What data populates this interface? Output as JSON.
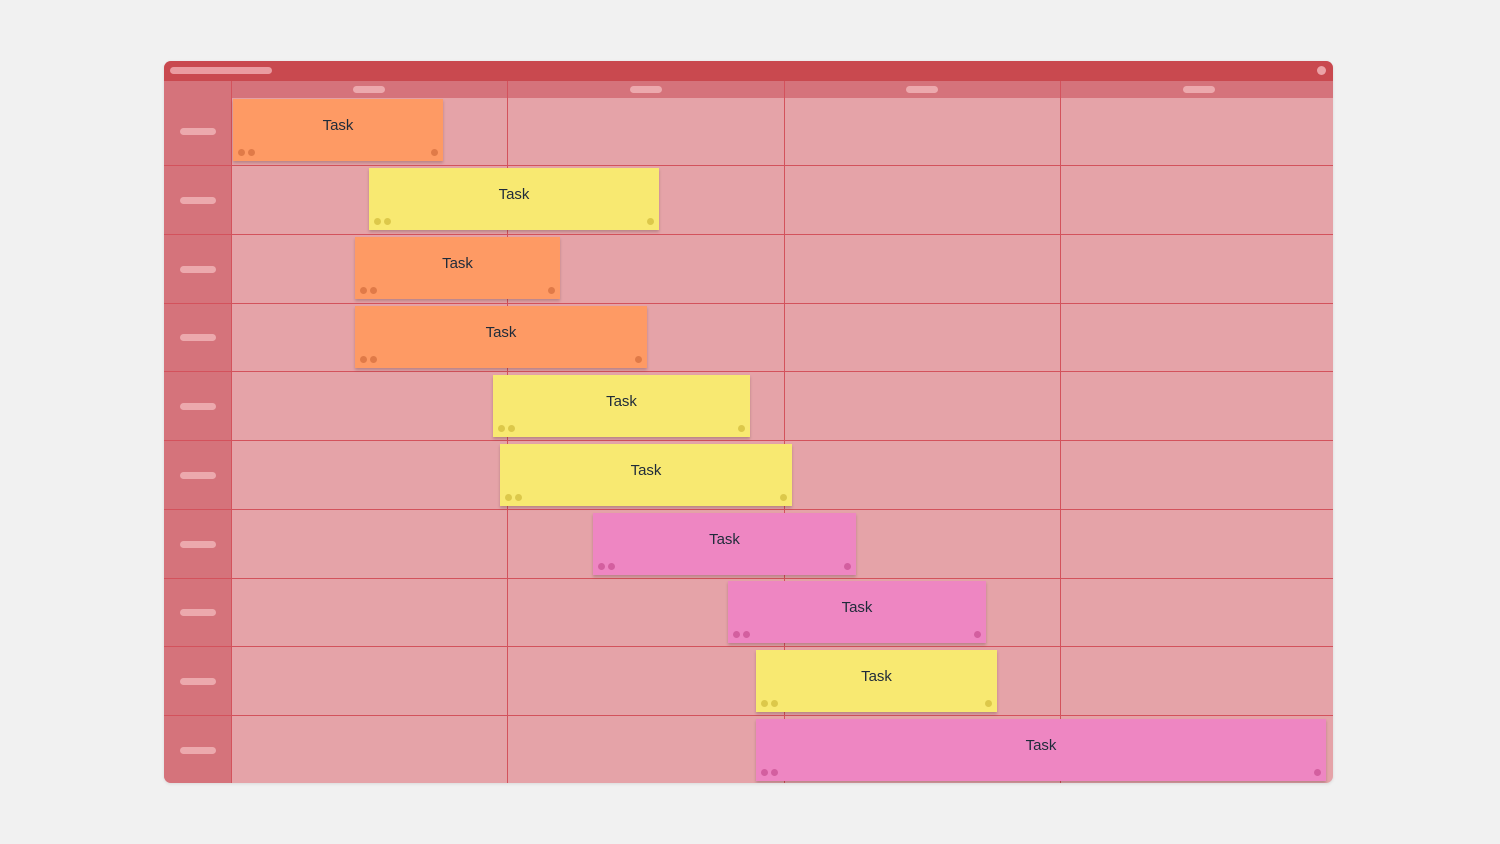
{
  "board": {
    "columns": 4,
    "rows": 10
  },
  "tasks": [
    {
      "label": "Task",
      "color": "orange",
      "row": 1
    },
    {
      "label": "Task",
      "color": "yellow",
      "row": 2
    },
    {
      "label": "Task",
      "color": "orange",
      "row": 3
    },
    {
      "label": "Task",
      "color": "orange",
      "row": 4
    },
    {
      "label": "Task",
      "color": "yellow",
      "row": 5
    },
    {
      "label": "Task",
      "color": "yellow",
      "row": 6
    },
    {
      "label": "Task",
      "color": "pink",
      "row": 7
    },
    {
      "label": "Task",
      "color": "pink",
      "row": 8
    },
    {
      "label": "Task",
      "color": "yellow",
      "row": 9
    },
    {
      "label": "Task",
      "color": "pink",
      "row": 10
    }
  ],
  "colors": {
    "orange": "#fe9a64",
    "yellow": "#f8e971",
    "pink": "#ee86c2",
    "frame_accent": "#c9494f"
  }
}
